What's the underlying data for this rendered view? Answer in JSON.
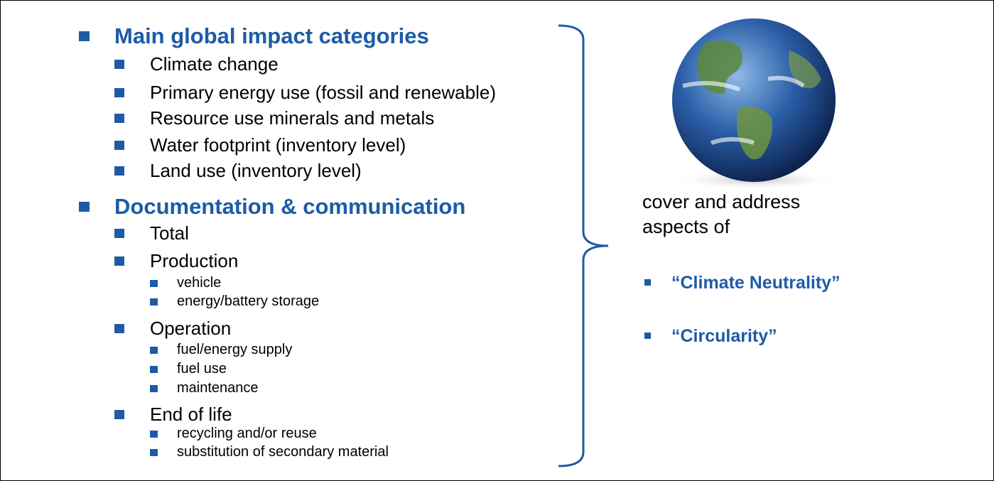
{
  "sections": [
    {
      "title": "Main global impact categories",
      "items": [
        {
          "label": "Climate change"
        },
        {
          "label": "Primary energy use (fossil and renewable)"
        },
        {
          "label": "Resource use minerals and metals"
        },
        {
          "label": "Water footprint (inventory level)"
        },
        {
          "label": "Land use (inventory level)"
        }
      ]
    },
    {
      "title": "Documentation & communication",
      "items": [
        {
          "label": "Total"
        },
        {
          "label": "Production",
          "subitems": [
            "vehicle",
            "energy/battery storage"
          ]
        },
        {
          "label": "Operation",
          "subitems": [
            "fuel/energy supply",
            "fuel use",
            "maintenance"
          ]
        },
        {
          "label": "End of life",
          "subitems": [
            "recycling and/or reuse",
            "substitution of secondary material"
          ]
        }
      ]
    }
  ],
  "aside": {
    "text": "cover and address aspects of",
    "points": [
      "“Climate Neutrality”",
      "“Circularity”"
    ]
  }
}
